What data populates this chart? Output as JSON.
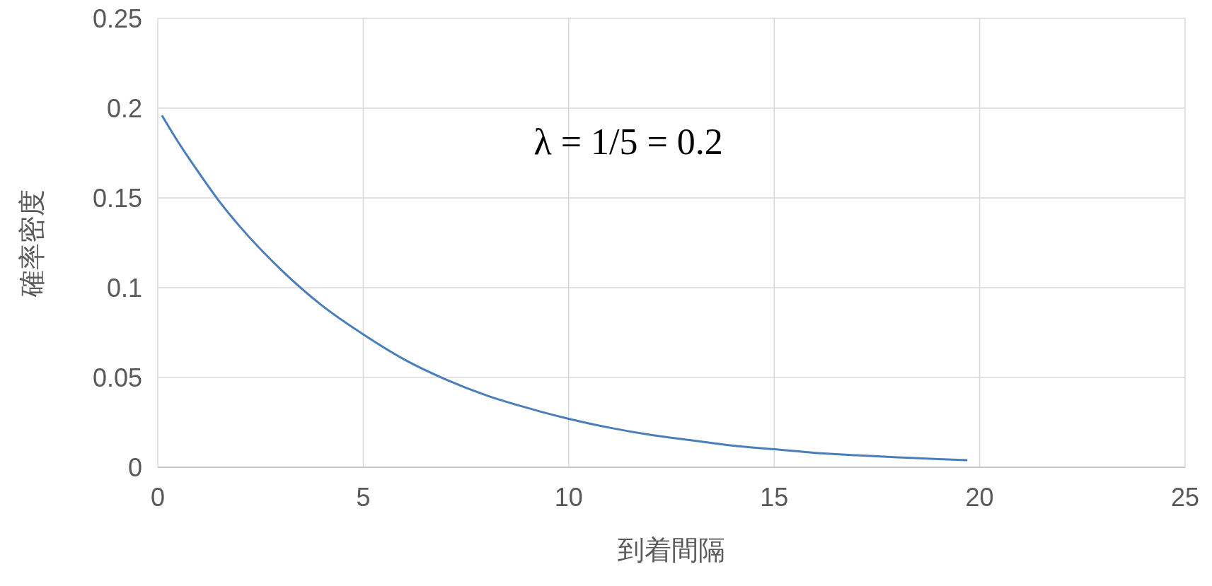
{
  "chart_data": {
    "type": "line",
    "xlabel": "到着間隔",
    "ylabel": "確率密度",
    "annotations": [
      "λ = 1/5 = 0.2"
    ],
    "x": [
      0.1,
      0.5,
      1,
      1.5,
      2,
      3,
      4,
      5,
      6,
      7,
      8,
      9,
      10,
      11,
      12,
      13,
      14,
      15,
      16,
      17,
      18,
      19,
      19.7
    ],
    "series": [
      {
        "color": "#4a7ebb",
        "values": [
          0.196,
          0.181,
          0.164,
          0.148,
          0.134,
          0.11,
          0.09,
          0.074,
          0.06,
          0.049,
          0.04,
          0.033,
          0.027,
          0.022,
          0.018,
          0.015,
          0.012,
          0.01,
          0.008,
          0.0067,
          0.0055,
          0.0045,
          0.0039
        ]
      }
    ],
    "xlim": [
      0,
      25
    ],
    "xticks": [
      0,
      5,
      10,
      15,
      20,
      25
    ],
    "ylim": [
      0,
      0.25
    ],
    "yticks": [
      0,
      0.05,
      0.1,
      0.15,
      0.2,
      0.25
    ],
    "grid": true,
    "marker": "none",
    "line_style": "solid"
  }
}
